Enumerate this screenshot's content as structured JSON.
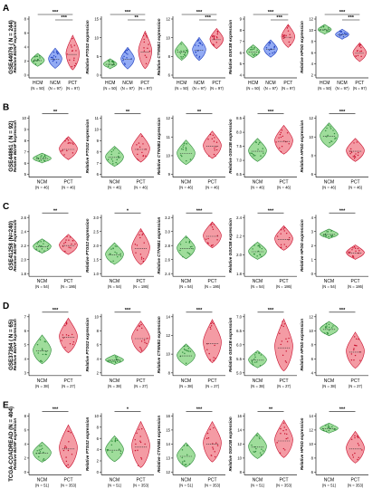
{
  "figure": {
    "panels": [
      {
        "letter": "A",
        "dataset": "GSE44076 ( N = 244)",
        "groups": [
          {
            "label": "HCM",
            "n": "(N = 50)",
            "color": "#2e8b3a",
            "fill": "#7fd17a"
          },
          {
            "label": "NCM",
            "n": "(N = 97)",
            "color": "#1f3fbf",
            "fill": "#6f8ff0"
          },
          {
            "label": "PCT",
            "n": "(N = 97)",
            "color": "#c8102e",
            "fill": "#f07a86"
          }
        ],
        "genes": [
          {
            "ylabel": "Relative BDNF expression",
            "ticks": [
              "0",
              "2",
              "4",
              "6",
              "8"
            ],
            "medians": [
              0.28,
              0.3,
              0.38
            ],
            "spreads": [
              0.09,
              0.14,
              0.24
            ],
            "sig": [
              {
                "text": "***",
                "from": 0,
                "to": 2
              },
              {
                "text": "***",
                "from": 1,
                "to": 2
              }
            ]
          },
          {
            "ylabel": "Relative PTGS2 expression",
            "ticks": [
              "0",
              "5",
              "10",
              "15"
            ],
            "medians": [
              0.22,
              0.3,
              0.42
            ],
            "spreads": [
              0.07,
              0.15,
              0.26
            ],
            "sig": [
              {
                "text": "***",
                "from": 0,
                "to": 2
              },
              {
                "text": "**",
                "from": 1,
                "to": 2
              }
            ]
          },
          {
            "ylabel": "Relative CTNNB1 expression",
            "ticks": [
              "6",
              "8",
              "10",
              "12"
            ],
            "medians": [
              0.42,
              0.45,
              0.62
            ],
            "spreads": [
              0.13,
              0.16,
              0.14
            ],
            "sig": [
              {
                "text": "***",
                "from": 0,
                "to": 2
              },
              {
                "text": "***",
                "from": 1,
                "to": 2
              }
            ]
          },
          {
            "ylabel": "Relative GSK3B expression",
            "ticks": [
              "4",
              "5",
              "6",
              "7",
              "8",
              "9"
            ],
            "medians": [
              0.42,
              0.46,
              0.66
            ],
            "spreads": [
              0.09,
              0.12,
              0.16
            ],
            "sig": [
              {
                "text": "***",
                "from": 0,
                "to": 2
              },
              {
                "text": "***",
                "from": 1,
                "to": 2
              }
            ]
          },
          {
            "ylabel": "Relative HPGD expression",
            "ticks": [
              "2",
              "4",
              "6",
              "8",
              "10",
              "12"
            ],
            "medians": [
              0.78,
              0.7,
              0.4
            ],
            "spreads": [
              0.05,
              0.07,
              0.13
            ],
            "sig": [
              {
                "text": "***",
                "from": 0,
                "to": 2
              },
              {
                "text": "***",
                "from": 1,
                "to": 2
              }
            ]
          }
        ]
      },
      {
        "letter": "B",
        "dataset": "GSE44861 ( N = 92)",
        "groups": [
          {
            "label": "NCM",
            "n": "(N = 46)",
            "color": "#2e8b3a",
            "fill": "#7fd17a"
          },
          {
            "label": "PCT",
            "n": "(N = 46)",
            "color": "#c8102e",
            "fill": "#f07a86"
          }
        ],
        "genes": [
          {
            "ylabel": "Relative BDNF expression",
            "ticks": [
              "5",
              "6",
              "7",
              "8",
              "9",
              "10"
            ],
            "medians": [
              0.3,
              0.45
            ],
            "spreads": [
              0.05,
              0.16
            ],
            "sig": [
              {
                "text": "**",
                "from": 0,
                "to": 1
              }
            ]
          },
          {
            "ylabel": "Relative PTGS2 expression",
            "ticks": [
              "6",
              "7",
              "8",
              "9",
              "10",
              "11"
            ],
            "medians": [
              0.32,
              0.45
            ],
            "spreads": [
              0.14,
              0.2
            ],
            "sig": [
              {
                "text": "**",
                "from": 0,
                "to": 1
              }
            ]
          },
          {
            "ylabel": "Relative CTNNB1 expression",
            "ticks": [
              "9",
              "10",
              "11",
              "12"
            ],
            "medians": [
              0.38,
              0.5
            ],
            "spreads": [
              0.17,
              0.19
            ],
            "sig": [
              {
                "text": "**",
                "from": 0,
                "to": 1
              }
            ]
          },
          {
            "ylabel": "Relative GSK3B expression",
            "ticks": [
              "6.5",
              "7.0",
              "7.5",
              "8.0",
              "8.5"
            ],
            "medians": [
              0.42,
              0.58
            ],
            "spreads": [
              0.16,
              0.2
            ],
            "sig": [
              {
                "text": "***",
                "from": 0,
                "to": 1
              }
            ]
          },
          {
            "ylabel": "Relative HPGD expression",
            "ticks": [
              "6",
              "8",
              "10",
              "12"
            ],
            "medians": [
              0.66,
              0.42
            ],
            "spreads": [
              0.17,
              0.16
            ],
            "sig": [
              {
                "text": "***",
                "from": 0,
                "to": 1
              }
            ]
          }
        ]
      },
      {
        "letter": "C",
        "dataset": "GSE41258 (N=240)",
        "groups": [
          {
            "label": "NCM",
            "n": "(N = 54)",
            "color": "#2e8b3a",
            "fill": "#7fd17a"
          },
          {
            "label": "PCT",
            "n": "(N = 186)",
            "color": "#c8102e",
            "fill": "#f07a86"
          }
        ],
        "genes": [
          {
            "ylabel": "Relative BDNF expression",
            "ticks": [
              "1.8",
              "2.0",
              "2.2",
              "2.4",
              "2.6"
            ],
            "medians": [
              0.48,
              0.5
            ],
            "spreads": [
              0.1,
              0.14
            ],
            "sig": [
              {
                "text": "**",
                "from": 0,
                "to": 1
              }
            ]
          },
          {
            "ylabel": "Relative PTGS2 expression",
            "ticks": [
              "1.0",
              "1.5",
              "2.0",
              "2.5",
              "3.0"
            ],
            "medians": [
              0.35,
              0.45
            ],
            "spreads": [
              0.15,
              0.25
            ],
            "sig": [
              {
                "text": "*",
                "from": 0,
                "to": 1
              }
            ]
          },
          {
            "ylabel": "Relative CTNNB1 expression",
            "ticks": [
              "2.4",
              "2.6",
              "2.8",
              "3.0",
              "3.2"
            ],
            "medians": [
              0.45,
              0.65
            ],
            "spreads": [
              0.16,
              0.18
            ],
            "sig": [
              {
                "text": "***",
                "from": 0,
                "to": 1
              }
            ]
          },
          {
            "ylabel": "Relative GSK3B expression",
            "ticks": [
              "1.8",
              "2.0",
              "2.2",
              "2.4"
            ],
            "medians": [
              0.4,
              0.6
            ],
            "spreads": [
              0.12,
              0.17
            ],
            "sig": [
              {
                "text": "***",
                "from": 0,
                "to": 1
              }
            ]
          },
          {
            "ylabel": "Relative HPGD expression",
            "ticks": [
              "0",
              "1",
              "2",
              "3",
              "4"
            ],
            "medians": [
              0.68,
              0.38
            ],
            "spreads": [
              0.05,
              0.1
            ],
            "sig": [
              {
                "text": "***",
                "from": 0,
                "to": 1
              }
            ]
          }
        ]
      },
      {
        "letter": "D",
        "dataset": "GSE37364 ( N = 65)",
        "groups": [
          {
            "label": "NCM",
            "n": "(N = 38)",
            "color": "#2e8b3a",
            "fill": "#7fd17a"
          },
          {
            "label": "PCT",
            "n": "(N = 27)",
            "color": "#c8102e",
            "fill": "#f07a86"
          }
        ],
        "genes": [
          {
            "ylabel": "Relative BDNF expression",
            "ticks": [
              "3",
              "4",
              "5",
              "6",
              "7"
            ],
            "medians": [
              0.4,
              0.62
            ],
            "spreads": [
              0.2,
              0.24
            ],
            "sig": [
              {
                "text": "***",
                "from": 0,
                "to": 1
              }
            ]
          },
          {
            "ylabel": "Relative PTGS2 expression",
            "ticks": [
              "2",
              "4",
              "6",
              "8",
              "10"
            ],
            "medians": [
              0.25,
              0.6
            ],
            "spreads": [
              0.06,
              0.22
            ],
            "sig": [
              {
                "text": "***",
                "from": 0,
                "to": 1
              }
            ]
          },
          {
            "ylabel": "Relative CTNNB1 expression",
            "ticks": [
              "8",
              "10",
              "12",
              "14"
            ],
            "medians": [
              0.32,
              0.52
            ],
            "spreads": [
              0.15,
              0.3
            ],
            "sig": [
              {
                "text": "***",
                "from": 0,
                "to": 1
              }
            ]
          },
          {
            "ylabel": "Relative GSK3B expression",
            "ticks": [
              "5.0",
              "5.5",
              "6.0",
              "6.5",
              "7.0"
            ],
            "medians": [
              0.25,
              0.45
            ],
            "spreads": [
              0.12,
              0.36
            ],
            "sig": [
              {
                "text": "***",
                "from": 0,
                "to": 1
              }
            ]
          },
          {
            "ylabel": "Relative HPGD expression",
            "ticks": [
              "4",
              "6",
              "8",
              "10",
              "12"
            ],
            "medians": [
              0.75,
              0.38
            ],
            "spreads": [
              0.1,
              0.25
            ],
            "sig": [
              {
                "text": "***",
                "from": 0,
                "to": 1
              }
            ]
          }
        ]
      },
      {
        "letter": "E",
        "dataset": "TCGA-COADREAD (N = 404)",
        "groups": [
          {
            "label": "NCM",
            "n": "(N = 51)",
            "color": "#2e8b3a",
            "fill": "#7fd17a"
          },
          {
            "label": "PCT",
            "n": "(N = 353)",
            "color": "#c8102e",
            "fill": "#f07a86"
          }
        ],
        "genes": [
          {
            "ylabel": "Relative BDNF expression",
            "ticks": [
              "0",
              "2",
              "4",
              "6",
              "8"
            ],
            "medians": [
              0.35,
              0.42
            ],
            "spreads": [
              0.14,
              0.3
            ],
            "sig": [
              {
                "text": "***",
                "from": 0,
                "to": 1
              }
            ]
          },
          {
            "ylabel": "Relative PTGS2 expression",
            "ticks": [
              "0",
              "2",
              "4",
              "6",
              "8",
              "10"
            ],
            "medians": [
              0.4,
              0.45
            ],
            "spreads": [
              0.18,
              0.32
            ],
            "sig": [
              {
                "text": "*",
                "from": 0,
                "to": 1
              }
            ]
          },
          {
            "ylabel": "Relative CTNNB1 expression",
            "ticks": [
              "12",
              "13",
              "14",
              "15",
              "16"
            ],
            "medians": [
              0.3,
              0.5
            ],
            "spreads": [
              0.17,
              0.28
            ],
            "sig": [
              {
                "text": "***",
                "from": 0,
                "to": 1
              }
            ]
          },
          {
            "ylabel": "Relative GSK3B expression",
            "ticks": [
              "8",
              "10",
              "12",
              "14",
              "16"
            ],
            "medians": [
              0.45,
              0.55
            ],
            "spreads": [
              0.18,
              0.26
            ],
            "sig": [
              {
                "text": "**",
                "from": 0,
                "to": 1
              }
            ]
          },
          {
            "ylabel": "Relative HPGD expression",
            "ticks": [
              "6",
              "8",
              "10",
              "12",
              "14"
            ],
            "medians": [
              0.75,
              0.42
            ],
            "spreads": [
              0.07,
              0.22
            ],
            "sig": [
              {
                "text": "***",
                "from": 0,
                "to": 1
              }
            ]
          }
        ]
      }
    ]
  }
}
